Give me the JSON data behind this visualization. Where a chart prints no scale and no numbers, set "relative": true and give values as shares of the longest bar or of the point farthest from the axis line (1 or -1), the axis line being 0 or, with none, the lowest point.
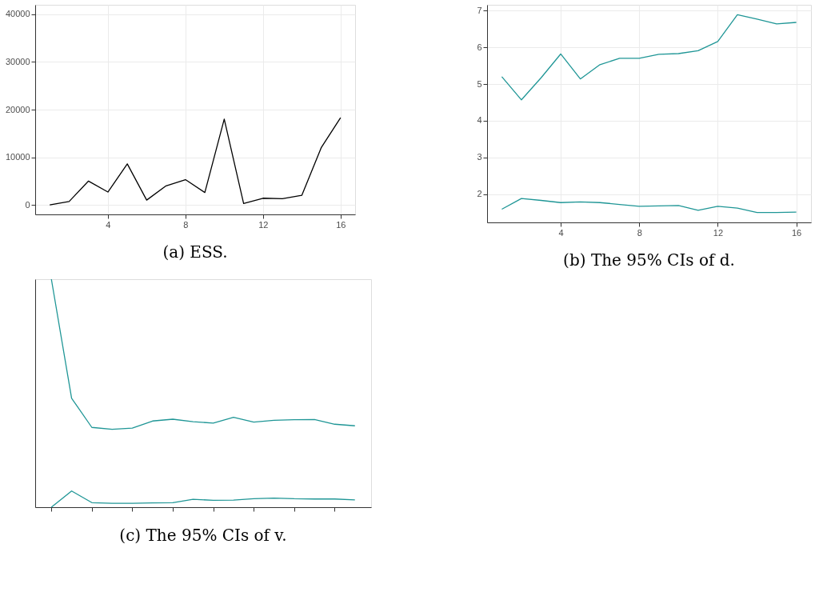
{
  "chart_data": [
    {
      "type": "line",
      "title": "(a) ESS.",
      "x": [
        1,
        2,
        3,
        4,
        5,
        6,
        7,
        8,
        9,
        10,
        11,
        12,
        13,
        14,
        15,
        16
      ],
      "series": [
        {
          "color": "#000000",
          "values": [
            0,
            700,
            5000,
            2700,
            8600,
            1000,
            4000,
            5300,
            2600,
            18000,
            300,
            1400,
            1300,
            2000,
            12000,
            18300
          ]
        }
      ],
      "xlim": [
        0.25,
        16.75
      ],
      "xticks": [
        4,
        8,
        12,
        16
      ],
      "ylim": [
        -2000,
        42000
      ],
      "yticks": [
        0,
        10000,
        20000,
        30000,
        40000
      ],
      "grid": true
    },
    {
      "type": "line",
      "title": "(b) The 95% CIs of d.",
      "x": [
        1,
        2,
        3,
        4,
        5,
        6,
        7,
        8,
        9,
        10,
        11,
        12,
        13,
        14,
        15,
        16
      ],
      "series": [
        {
          "color": "#1f9696",
          "values": [
            5.2,
            4.57,
            5.17,
            5.82,
            5.14,
            5.53,
            5.7,
            5.7,
            5.81,
            5.83,
            5.91,
            6.16,
            6.89,
            6.77,
            6.64,
            6.68
          ]
        },
        {
          "color": "#1f9696",
          "values": [
            1.59,
            1.88,
            1.83,
            1.77,
            1.79,
            1.77,
            1.72,
            1.67,
            1.68,
            1.69,
            1.56,
            1.67,
            1.62,
            1.5,
            1.5,
            1.51
          ]
        }
      ],
      "xlim": [
        0.25,
        16.75
      ],
      "xticks": [
        4,
        8,
        12,
        16
      ],
      "ylim": [
        1.23,
        7.16
      ],
      "yticks": [
        2,
        3,
        4,
        5,
        6,
        7
      ],
      "grid": true
    },
    {
      "type": "line",
      "title": "(c) The 95% CIs of v.",
      "categories": [
        null,
        null,
        null,
        null,
        null,
        null,
        null,
        null,
        null,
        null,
        null,
        null,
        null,
        null,
        null,
        null
      ],
      "relative": true,
      "series": [
        {
          "color": "#1f9696",
          "values": [
            1,
            0.478,
            0.35,
            0.342,
            0.347,
            0.378,
            0.386,
            0.375,
            0.369,
            0.394,
            0.373,
            0.381,
            0.384,
            0.385,
            0.364,
            0.357
          ]
        },
        {
          "color": "#1f9696",
          "values": [
            0,
            0.071,
            0.02,
            0.017,
            0.017,
            0.019,
            0.02,
            0.035,
            0.03,
            0.031,
            0.037,
            0.04,
            0.037,
            0.036,
            0.036,
            0.032
          ]
        }
      ]
    }
  ]
}
